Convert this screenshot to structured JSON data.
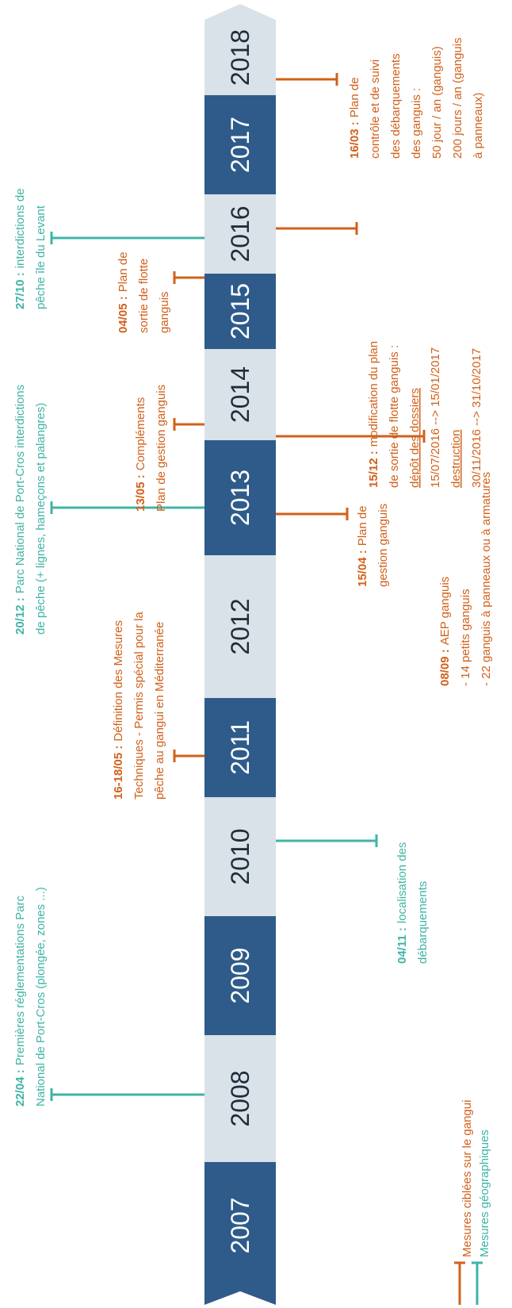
{
  "timeline": {
    "years": [
      "2007",
      "2008",
      "2009",
      "2010",
      "2011",
      "2012",
      "2013",
      "2014",
      "2015",
      "2016",
      "2017",
      "2018"
    ]
  },
  "events": [
    {
      "date": "22/04 :",
      "color": "#3fb4a6",
      "lines": [
        "Premières réglementations Parc",
        "National de Port-Cros (plongée, zones ...)"
      ]
    },
    {
      "date": "16-18/05 :",
      "color": "#d2601a",
      "lines": [
        "Définition des Mesures",
        "Techniques - Permis spécial pour la",
        "pêche au gangui en Méditerranée"
      ]
    },
    {
      "date": "04/11 :",
      "color": "#3fb4a6",
      "lines": [
        "localisation des",
        "débarquements"
      ]
    },
    {
      "date": "20/12 :",
      "color": "#3fb4a6",
      "lines": [
        "Parc National de Port-Cros interdictions",
        "de pêche (+ lignes, hameçons et palangres)"
      ]
    },
    {
      "date": "13/05 :",
      "color": "#d2601a",
      "lines": [
        "Compléments",
        "Plan de gestion ganguis"
      ]
    },
    {
      "date": "15/04 :",
      "color": "#d2601a",
      "lines": [
        "Plan de",
        "gestion ganguis"
      ]
    },
    {
      "date": "08/09 :",
      "color": "#d2601a",
      "lines": [
        "AEP ganguis",
        "- 14 petits ganguis",
        "- 22 ganguis à panneaux ou à armatures"
      ]
    },
    {
      "date": "04/05 :",
      "color": "#d2601a",
      "lines": [
        "Plan de",
        "sortie de flotte",
        "ganguis"
      ]
    },
    {
      "date": "27/10 :",
      "color": "#3fb4a6",
      "lines": [
        "interdictions de",
        "pêche île du Levant"
      ]
    },
    {
      "date": "15/12 :",
      "color": "#d2601a",
      "lines": [
        "modification du plan",
        "de sortie de flotte ganguis :",
        "dépôt des dossiers",
        "15/07/2016 --> 15/01/2017",
        "destruction",
        "30/11/2016 --> 31/10/2017"
      ]
    },
    {
      "date": "16/03 :",
      "color": "#d2601a",
      "lines": [
        "Plan de",
        "contrôle et de suivi",
        "des débarquements",
        "des ganguis :",
        "50 jour / an (ganguis)",
        "200 jours / an (ganguis",
        "à panneaux)"
      ]
    }
  ],
  "legend": [
    {
      "label": "Mesures ciblées sur le gangui",
      "color": "#d2601a"
    },
    {
      "label": "Mesures géographiques",
      "color": "#3fb4a6"
    }
  ]
}
